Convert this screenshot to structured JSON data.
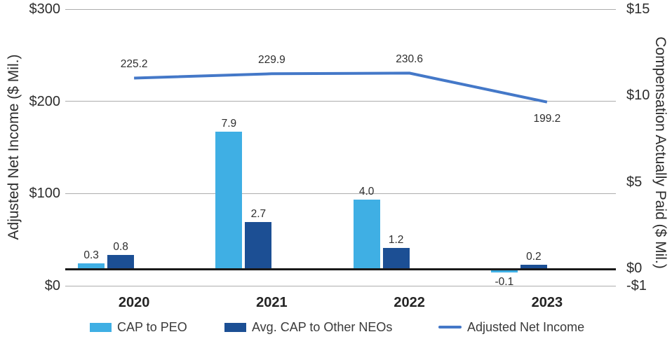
{
  "chart_data": {
    "type": "combo-bar-line",
    "categories": [
      "2020",
      "2021",
      "2022",
      "2023"
    ],
    "bar_series": [
      {
        "name": "CAP to PEO",
        "color": "#3FAFE4",
        "axis": "right",
        "values": [
          0.3,
          7.9,
          4.0,
          -0.1
        ],
        "labels": [
          "0.3",
          "7.9",
          "4.0",
          "-0.1"
        ]
      },
      {
        "name": "Avg. CAP to Other NEOs",
        "color": "#1C4F94",
        "axis": "right",
        "values": [
          0.8,
          2.7,
          1.2,
          0.2
        ],
        "labels": [
          "0.8",
          "2.7",
          "1.2",
          "0.2"
        ]
      }
    ],
    "line_series": [
      {
        "name": "Adjusted Net Income",
        "color": "#4478C8",
        "axis": "left",
        "values": [
          225.2,
          229.9,
          230.6,
          199.2
        ],
        "labels": [
          "225.2",
          "229.9",
          "230.6",
          "199.2"
        ],
        "label_placement": [
          "above",
          "above",
          "above",
          "below"
        ]
      }
    ],
    "axes": {
      "left": {
        "title": "Adjusted Net Income ($ Mil.)",
        "range": [
          0,
          300
        ],
        "ticks": [
          {
            "value": 300,
            "label": "$300"
          },
          {
            "value": 200,
            "label": "$200"
          },
          {
            "value": 100,
            "label": "$100"
          },
          {
            "value": 0,
            "label": "$0"
          }
        ]
      },
      "right": {
        "title": "Compensation Actually Paid ($ Mil.)",
        "range": [
          -1,
          15
        ],
        "ticks": [
          {
            "value": 15,
            "label": "$15"
          },
          {
            "value": 10,
            "label": "$10"
          },
          {
            "value": 5,
            "label": "$5"
          },
          {
            "value": 0,
            "label": "$0"
          },
          {
            "value": -1,
            "label": "-$1"
          }
        ]
      }
    },
    "grid": {
      "show": true,
      "color": "#ADADAD",
      "zero_line_color": "#1A1A1A"
    },
    "legend": {
      "position": "bottom",
      "items": [
        {
          "label": "CAP to PEO",
          "swatch": "square",
          "color": "#3FAFE4"
        },
        {
          "label": "Avg. CAP to Other NEOs",
          "swatch": "square",
          "color": "#1C4F94"
        },
        {
          "label": "Adjusted Net Income",
          "swatch": "line",
          "color": "#4478C8"
        }
      ]
    }
  }
}
